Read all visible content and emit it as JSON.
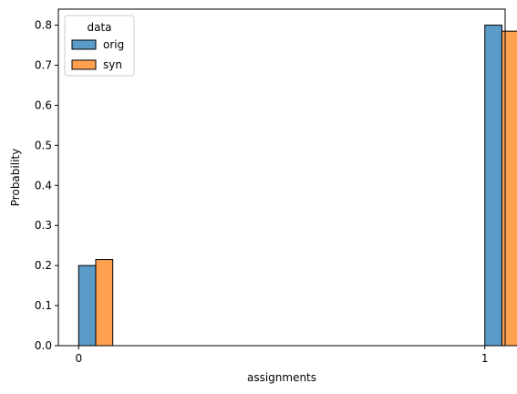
{
  "chart_data": {
    "type": "bar",
    "title": "",
    "xlabel": "assignments",
    "ylabel": "Probability",
    "xlim": [
      -0.05,
      1.05
    ],
    "ylim": [
      0,
      0.84
    ],
    "x_ticks": [
      0,
      1
    ],
    "x_tick_labels": [
      "0",
      "1"
    ],
    "y_ticks": [
      0,
      0.1,
      0.2,
      0.3,
      0.4,
      0.5,
      0.6,
      0.7,
      0.8
    ],
    "y_tick_labels": [
      "0.0",
      "0.1",
      "0.2",
      "0.3",
      "0.4",
      "0.5",
      "0.6",
      "0.7",
      "0.8"
    ],
    "grid": false,
    "legend": {
      "title": "data",
      "placement": "top-left"
    },
    "categories": [
      0,
      1
    ],
    "series": [
      {
        "name": "orig",
        "color": "#5b9bc8",
        "values": [
          0.2,
          0.8
        ]
      },
      {
        "name": "syn",
        "color": "#ffa04f",
        "values": [
          0.215,
          0.785
        ]
      }
    ]
  }
}
